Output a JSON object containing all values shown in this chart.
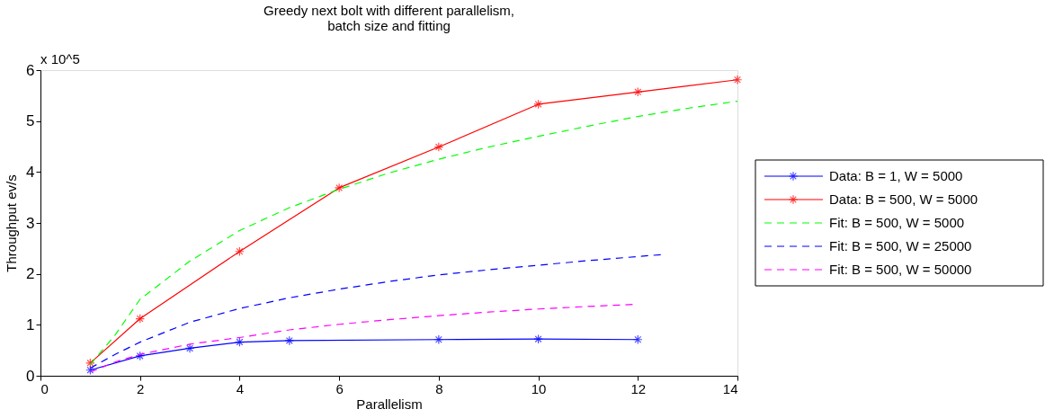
{
  "chart_data": {
    "type": "line",
    "title": "Greedy next bolt with different parallelism,\nbatch size and fitting",
    "xlabel": "Parallelism",
    "ylabel": "Throughput ev/s",
    "annotations": [
      "x 10^5"
    ],
    "xlim": [
      0,
      14
    ],
    "xticks": [
      0,
      2,
      4,
      6,
      8,
      10,
      12,
      14
    ],
    "ylim": [
      0,
      6
    ],
    "yticks": [
      0,
      1,
      2,
      3,
      4,
      5,
      6
    ],
    "grid": false,
    "legend": "right",
    "series": [
      {
        "name": "Data: B = 1, W = 5000",
        "color": "#0000ff",
        "marker": "cross",
        "line_style": "solid",
        "x": [
          1,
          2,
          3,
          4,
          5,
          8,
          10,
          12
        ],
        "values": [
          0.11,
          0.39,
          0.54,
          0.66,
          0.69,
          0.71,
          0.72,
          0.71
        ]
      },
      {
        "name": "Data: B = 500, W = 5000",
        "color": "#ff0000",
        "marker": "cross",
        "line_style": "solid",
        "x": [
          1,
          2,
          4,
          6,
          8,
          10,
          12,
          14
        ],
        "values": [
          0.25,
          1.12,
          2.44,
          3.69,
          4.49,
          5.33,
          5.57,
          5.81
        ]
      },
      {
        "name": "Fit: B = 500, W = 5000",
        "color": "#00ff00",
        "marker": "none",
        "line_style": "dashed",
        "x": [
          1,
          1.5,
          2,
          3,
          4,
          5,
          6,
          7,
          8,
          9,
          10,
          11,
          12,
          13,
          14
        ],
        "values": [
          0.22,
          0.8,
          1.5,
          2.25,
          2.85,
          3.3,
          3.66,
          3.98,
          4.25,
          4.49,
          4.7,
          4.9,
          5.09,
          5.25,
          5.39
        ]
      },
      {
        "name": "Fit: B = 500, W = 25000",
        "color": "#0000ff",
        "marker": "none",
        "line_style": "dashed",
        "x": [
          1,
          1.5,
          2,
          3,
          4,
          5,
          6,
          7,
          8,
          9,
          10,
          11,
          12,
          12.5
        ],
        "values": [
          0.15,
          0.42,
          0.66,
          1.05,
          1.32,
          1.53,
          1.7,
          1.85,
          1.98,
          2.08,
          2.17,
          2.26,
          2.34,
          2.38
        ]
      },
      {
        "name": "Fit: B = 500, W = 50000",
        "color": "#ff00ff",
        "marker": "none",
        "line_style": "dashed",
        "x": [
          1,
          1.5,
          2,
          3,
          4,
          5,
          6,
          7,
          8,
          9,
          10,
          11,
          11.9
        ],
        "values": [
          0.07,
          0.27,
          0.42,
          0.62,
          0.75,
          0.9,
          1.01,
          1.1,
          1.18,
          1.25,
          1.31,
          1.36,
          1.4
        ]
      }
    ]
  }
}
